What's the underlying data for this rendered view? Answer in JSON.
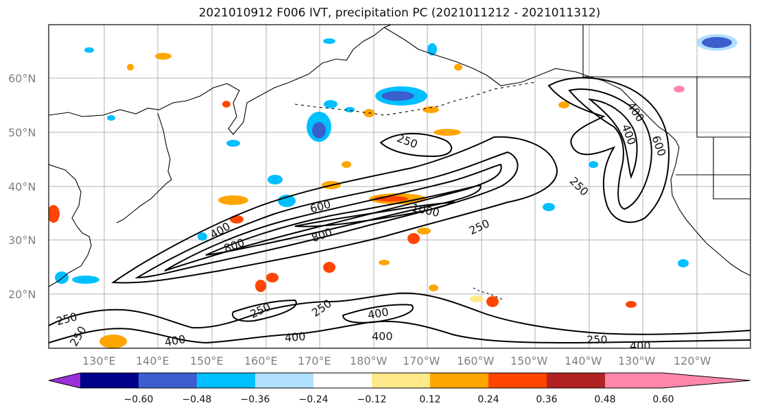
{
  "title": "2021010912 F006 IVT, precipitation PC (2021011212 - 2021011312)",
  "map": {
    "lat_labels": [
      "60°N",
      "50°N",
      "40°N",
      "30°N",
      "20°N"
    ],
    "lon_labels": [
      "130°E",
      "140°E",
      "150°E",
      "160°E",
      "170°E",
      "180°W",
      "170°W",
      "160°W",
      "150°W",
      "140°W",
      "130°W",
      "120°W"
    ],
    "contour_labels": [
      "250",
      "400",
      "600",
      "800",
      "1000",
      "800",
      "250",
      "250",
      "400",
      "600",
      "400",
      "250",
      "250",
      "400",
      "250",
      "400",
      "400",
      "400",
      "250",
      "400",
      "250"
    ]
  },
  "colorbar": {
    "ticks": [
      "−0.60",
      "−0.48",
      "−0.36",
      "−0.24",
      "−0.12",
      "0.12",
      "0.24",
      "0.36",
      "0.48",
      "0.60"
    ],
    "colors": [
      "#9b30d9",
      "#00008b",
      "#3a5fcd",
      "#00bfff",
      "#afe0ff",
      "#ffffff",
      "#ffe98a",
      "#ffa500",
      "#ff4500",
      "#b22222",
      "#ff88aa"
    ]
  },
  "colors": {
    "negative_strong": "#3a5fcd",
    "negative_mid": "#00bfff",
    "negative_weak": "#afe0ff",
    "positive_weak": "#ffe98a",
    "positive_mid": "#ffa500",
    "positive_strong": "#ff4500"
  }
}
